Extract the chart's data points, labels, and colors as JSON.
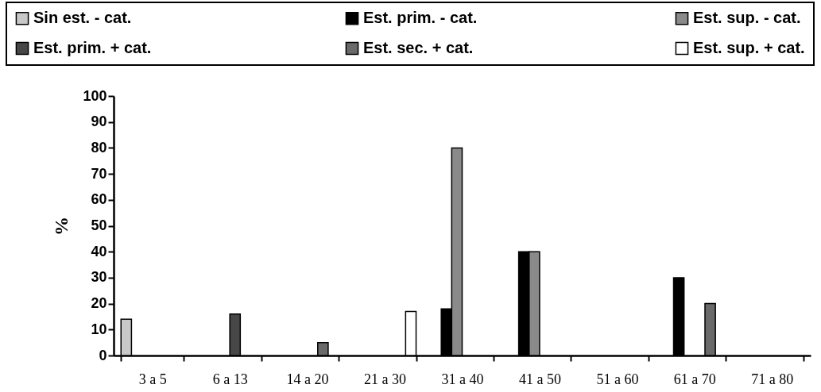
{
  "chart_data": {
    "type": "bar",
    "ylabel": "%",
    "categories": [
      "3 a 5",
      "6 a 13",
      "14 a 20",
      "21 a 30",
      "31 a 40",
      "41 a 50",
      "51 a 60",
      "61 a 70",
      "71 a 80"
    ],
    "series": [
      {
        "name": "Sin est. - cat.",
        "color": "#c8c8c8",
        "values": [
          14,
          null,
          null,
          null,
          null,
          null,
          null,
          null,
          null
        ]
      },
      {
        "name": "Est. prim. - cat.",
        "color": "#000000",
        "values": [
          null,
          null,
          null,
          null,
          18,
          40,
          null,
          30,
          null
        ]
      },
      {
        "name": "Est. sup.  - cat.",
        "color": "#8a8a8a",
        "values": [
          null,
          null,
          null,
          null,
          80,
          40,
          null,
          null,
          null
        ]
      },
      {
        "name": "Est. prim.  + cat.",
        "color": "#474747",
        "values": [
          null,
          16,
          null,
          null,
          null,
          null,
          null,
          null,
          null
        ]
      },
      {
        "name": "Est. sec. + cat.",
        "color": "#6a6a6a",
        "values": [
          null,
          null,
          5,
          null,
          null,
          null,
          null,
          20,
          null
        ]
      },
      {
        "name": "Est. sup. + cat.",
        "color": "#ffffff",
        "values": [
          null,
          null,
          null,
          17,
          null,
          null,
          null,
          null,
          null
        ]
      }
    ],
    "ylim": [
      0,
      100
    ],
    "yticks": [
      0,
      10,
      20,
      30,
      40,
      50,
      60,
      70,
      80,
      90,
      100
    ],
    "grid": false,
    "legend": "top"
  }
}
